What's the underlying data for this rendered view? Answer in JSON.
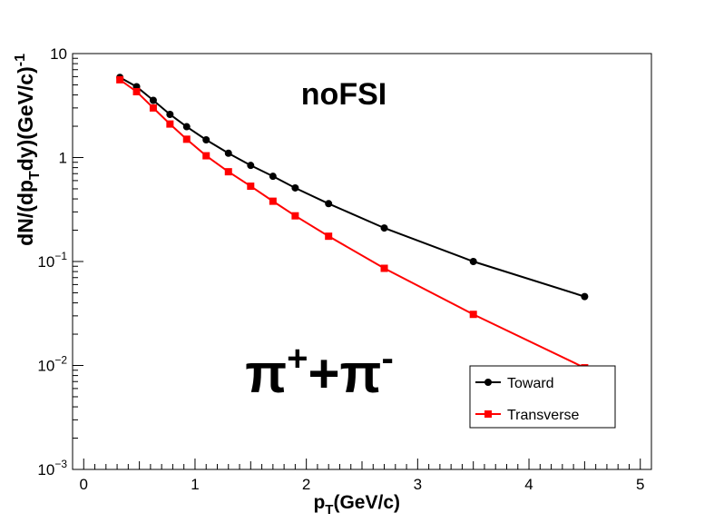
{
  "chart_data": {
    "type": "line",
    "title": "noFSI",
    "annotation": {
      "base": "π",
      "sup1": "+",
      "plus": "+",
      "sup2": "-"
    },
    "xlabel": {
      "main": "p",
      "sub": "T",
      "rest": "(GeV/c)"
    },
    "ylabel": {
      "a": "dN/(dp",
      "sub": "T",
      "b": "dy)(GeV/c)",
      "sup": "-1"
    },
    "xlim": [
      -0.1,
      5.1
    ],
    "ylim": [
      0.001,
      10
    ],
    "yscale": "log",
    "x_ticks": [
      {
        "value": 0,
        "label": "0"
      },
      {
        "value": 1,
        "label": "1"
      },
      {
        "value": 2,
        "label": "2"
      },
      {
        "value": 3,
        "label": "3"
      },
      {
        "value": 4,
        "label": "4"
      },
      {
        "value": 5,
        "label": "5"
      }
    ],
    "y_ticks": [
      {
        "value": 10,
        "base": "10",
        "exp": ""
      },
      {
        "value": 1,
        "base": "1",
        "exp": ""
      },
      {
        "value": 0.1,
        "base": "10",
        "exp": "−1"
      },
      {
        "value": 0.01,
        "base": "10",
        "exp": "−2"
      },
      {
        "value": 0.001,
        "base": "10",
        "exp": "−3"
      }
    ],
    "series": [
      {
        "name": "Toward",
        "color": "#000000",
        "marker": "circle",
        "x": [
          0.325,
          0.475,
          0.625,
          0.775,
          0.925,
          1.1,
          1.3,
          1.5,
          1.7,
          1.9,
          2.2,
          2.7,
          3.5,
          4.5
        ],
        "y": [
          5.9,
          4.8,
          3.55,
          2.6,
          1.98,
          1.48,
          1.1,
          0.84,
          0.66,
          0.51,
          0.36,
          0.21,
          0.1,
          0.046
        ]
      },
      {
        "name": "Transverse",
        "color": "#ff0000",
        "marker": "square",
        "x": [
          0.325,
          0.475,
          0.625,
          0.775,
          0.925,
          1.1,
          1.3,
          1.5,
          1.7,
          1.9,
          2.2,
          2.7,
          3.5,
          4.5
        ],
        "y": [
          5.6,
          4.3,
          3.0,
          2.1,
          1.5,
          1.04,
          0.73,
          0.53,
          0.38,
          0.275,
          0.175,
          0.086,
          0.031,
          0.0095
        ]
      }
    ],
    "legend_position": "lower-right",
    "grid": false
  }
}
